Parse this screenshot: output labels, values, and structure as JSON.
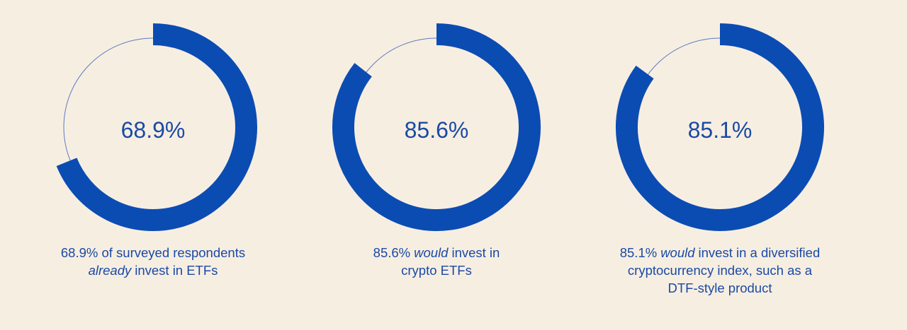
{
  "chart_data": [
    {
      "type": "donut",
      "values": [
        68.9
      ],
      "value_labels": [
        "68.9%"
      ],
      "ylim": [
        0,
        100
      ],
      "color": "#0b4cb3",
      "caption_lines": [
        [
          {
            "text": "68.9% of surveyed respondents",
            "italic": false
          }
        ],
        [
          {
            "text": "already",
            "italic": true
          },
          {
            "text": "invest in ETFs",
            "italic": false
          }
        ]
      ]
    },
    {
      "type": "donut",
      "values": [
        85.6
      ],
      "value_labels": [
        "85.6%"
      ],
      "ylim": [
        0,
        100
      ],
      "color": "#0b4cb3",
      "caption_lines": [
        [
          {
            "text": "85.6%",
            "italic": false
          },
          {
            "text": "would",
            "italic": true
          },
          {
            "text": "invest in",
            "italic": false
          }
        ],
        [
          {
            "text": "crypto ETFs",
            "italic": false
          }
        ]
      ]
    },
    {
      "type": "donut",
      "values": [
        85.1
      ],
      "value_labels": [
        "85.1%"
      ],
      "ylim": [
        0,
        100
      ],
      "color": "#0b4cb3",
      "caption_lines": [
        [
          {
            "text": "85.1%",
            "italic": false
          },
          {
            "text": "would",
            "italic": true
          },
          {
            "text": "invest in a diversified",
            "italic": false
          }
        ],
        [
          {
            "text": "cryptocurrency index, such as a",
            "italic": false
          }
        ],
        [
          {
            "text": "DTF-style product",
            "italic": false
          }
        ]
      ]
    }
  ]
}
